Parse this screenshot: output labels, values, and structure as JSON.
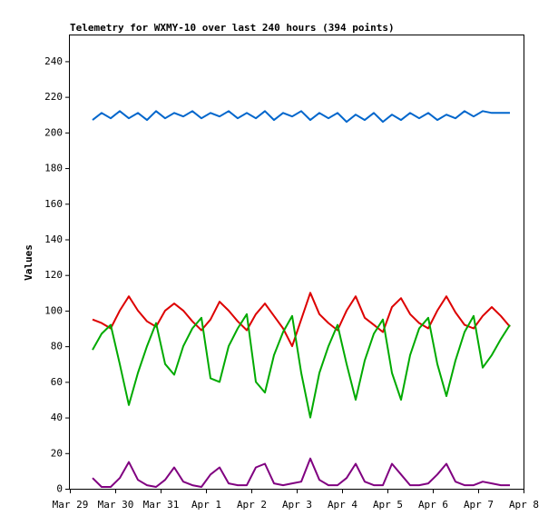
{
  "chart_data": {
    "type": "line",
    "title": "Telemetry for WXMY-10 over last 240 hours (394 points)",
    "y_label": "Values",
    "x": [
      0.5,
      0.7,
      0.9,
      1.1,
      1.3,
      1.5,
      1.7,
      1.9,
      2.1,
      2.3,
      2.5,
      2.7,
      2.9,
      3.1,
      3.3,
      3.5,
      3.7,
      3.9,
      4.1,
      4.3,
      4.5,
      4.7,
      4.9,
      5.1,
      5.3,
      5.5,
      5.7,
      5.9,
      6.1,
      6.3,
      6.5,
      6.7,
      6.9,
      7.1,
      7.3,
      7.5,
      7.7,
      7.9,
      8.1,
      8.3,
      8.5,
      8.7,
      8.9,
      9.1,
      9.3,
      9.5,
      9.7
    ],
    "series": [
      {
        "color": "#0066cc",
        "values": [
          207,
          211,
          208,
          212,
          208,
          211,
          207,
          212,
          208,
          211,
          209,
          212,
          208,
          211,
          209,
          212,
          208,
          211,
          208,
          212,
          207,
          211,
          209,
          212,
          207,
          211,
          208,
          211,
          206,
          210,
          207,
          211,
          206,
          210,
          207,
          211,
          208,
          211,
          207,
          210,
          208,
          212,
          209,
          212,
          211,
          211,
          211
        ]
      },
      {
        "color": "#dd0000",
        "values": [
          95,
          93,
          90,
          100,
          108,
          100,
          94,
          91,
          100,
          104,
          100,
          94,
          89,
          95,
          105,
          100,
          94,
          89,
          98,
          104,
          97,
          90,
          80,
          95,
          110,
          98,
          93,
          89,
          100,
          108,
          96,
          92,
          88,
          102,
          107,
          98,
          93,
          90,
          100,
          108,
          99,
          92,
          90,
          97,
          102,
          97,
          91
        ]
      },
      {
        "color": "#00aa00",
        "values": [
          78,
          87,
          92,
          70,
          47,
          65,
          80,
          93,
          70,
          64,
          80,
          90,
          96,
          62,
          60,
          80,
          90,
          98,
          60,
          54,
          75,
          88,
          97,
          65,
          40,
          65,
          80,
          92,
          70,
          50,
          72,
          87,
          95,
          65,
          50,
          75,
          90,
          96,
          70,
          52,
          72,
          88,
          97,
          68,
          75,
          84,
          92
        ]
      },
      {
        "color": "#800080",
        "values": [
          6,
          1,
          1,
          6,
          15,
          5,
          2,
          1,
          5,
          12,
          4,
          2,
          1,
          8,
          12,
          3,
          2,
          2,
          12,
          14,
          3,
          2,
          3,
          4,
          17,
          5,
          2,
          2,
          6,
          14,
          4,
          2,
          2,
          14,
          8,
          2,
          2,
          3,
          8,
          14,
          4,
          2,
          2,
          4,
          3,
          2,
          2
        ]
      }
    ],
    "xlim": [
      0,
      10
    ],
    "xticks": [
      {
        "value": 0,
        "label": "Mar 29"
      },
      {
        "value": 1,
        "label": "Mar 30"
      },
      {
        "value": 2,
        "label": "Mar 31"
      },
      {
        "value": 3,
        "label": "Apr 1"
      },
      {
        "value": 4,
        "label": "Apr 2"
      },
      {
        "value": 5,
        "label": "Apr 3"
      },
      {
        "value": 6,
        "label": "Apr 4"
      },
      {
        "value": 7,
        "label": "Apr 5"
      },
      {
        "value": 8,
        "label": "Apr 6"
      },
      {
        "value": 9,
        "label": "Apr 7"
      },
      {
        "value": 10,
        "label": "Apr 8"
      }
    ],
    "ylim": [
      0,
      255
    ],
    "yticks": [
      0,
      20,
      40,
      60,
      80,
      100,
      120,
      140,
      160,
      180,
      200,
      220,
      240
    ],
    "grid": false
  }
}
